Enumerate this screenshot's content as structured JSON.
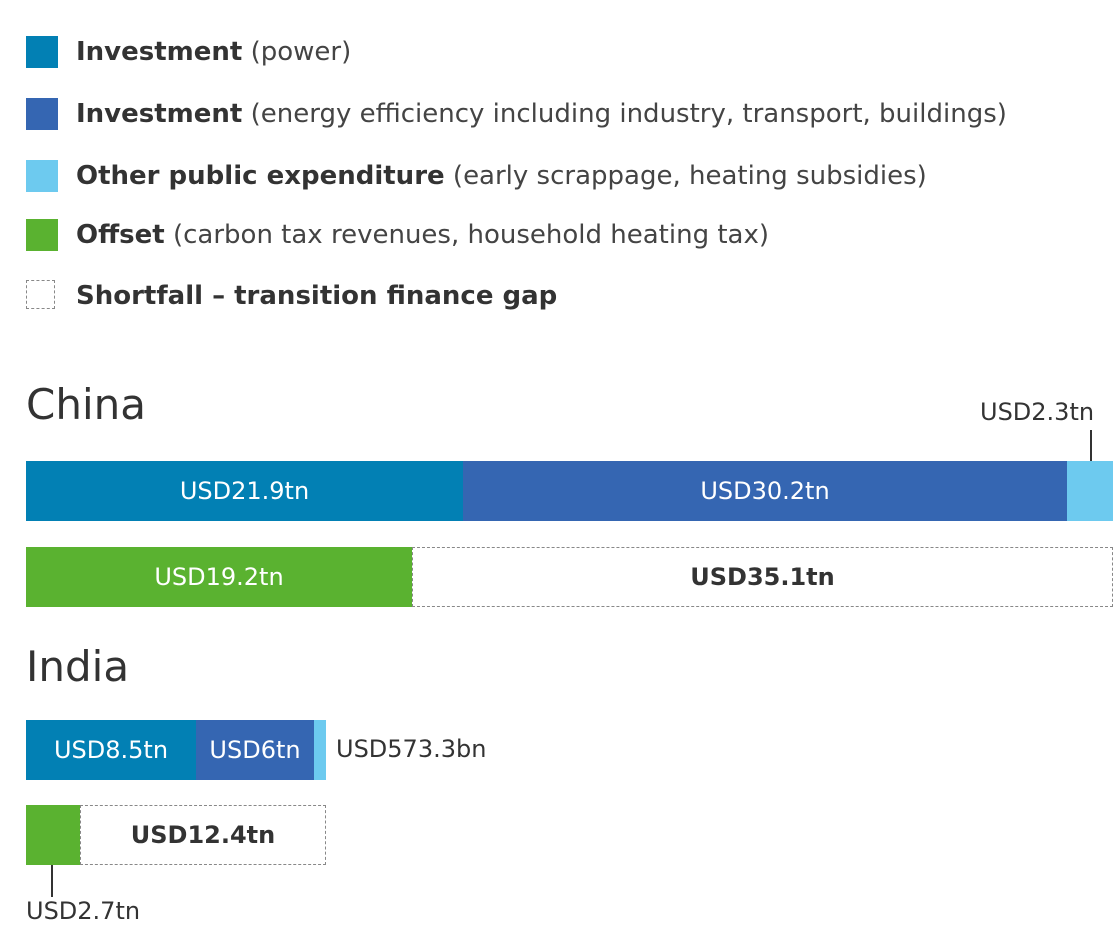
{
  "legend": [
    {
      "bold": "Investment",
      "rest": "(power)",
      "color": "#0280b4",
      "style": "solid"
    },
    {
      "bold": "Investment",
      "rest": "(energy efficiency including industry, transport, buildings)",
      "color": "#3566b2",
      "style": "solid"
    },
    {
      "bold": "Other public expenditure",
      "rest": "(early scrappage, heating subsidies)",
      "color": "#6dcaef",
      "style": "solid"
    },
    {
      "bold": "Offset",
      "rest": "(carbon tax revenues, household heating tax)",
      "color": "#5ab230",
      "style": "solid"
    },
    {
      "bold": "Shortfall – transition finance gap",
      "rest": "",
      "color": "#888888",
      "style": "dashed"
    }
  ],
  "chart_data": {
    "type": "bar",
    "units": "USD trillion",
    "countries": [
      {
        "name": "China",
        "spending": [
          {
            "series": "Investment (power)",
            "value": 21.9,
            "label": "USD21.9tn",
            "color": "#0280b4"
          },
          {
            "series": "Investment (energy efficiency)",
            "value": 30.2,
            "label": "USD30.2tn",
            "color": "#3566b2"
          },
          {
            "series": "Other public expenditure",
            "value": 2.3,
            "label": "USD2.3tn",
            "color": "#6dcaef"
          }
        ],
        "funding": [
          {
            "series": "Offset",
            "value": 19.2,
            "label": "USD19.2tn",
            "color": "#5ab230"
          },
          {
            "series": "Shortfall – transition finance gap",
            "value": 35.1,
            "label": "USD35.1tn",
            "color": "#888888"
          }
        ]
      },
      {
        "name": "India",
        "spending": [
          {
            "series": "Investment (power)",
            "value": 8.5,
            "label": "USD8.5tn",
            "color": "#0280b4"
          },
          {
            "series": "Investment (energy efficiency)",
            "value": 6.0,
            "label": "USD6tn",
            "color": "#3566b2"
          },
          {
            "series": "Other public expenditure",
            "value": 0.5733,
            "label": "USD573.3bn",
            "color": "#6dcaef"
          }
        ],
        "funding": [
          {
            "series": "Offset",
            "value": 2.7,
            "label": "USD2.7tn",
            "color": "#5ab230"
          },
          {
            "series": "Shortfall – transition finance gap",
            "value": 12.4,
            "label": "USD12.4tn",
            "color": "#888888"
          }
        ]
      }
    ]
  }
}
